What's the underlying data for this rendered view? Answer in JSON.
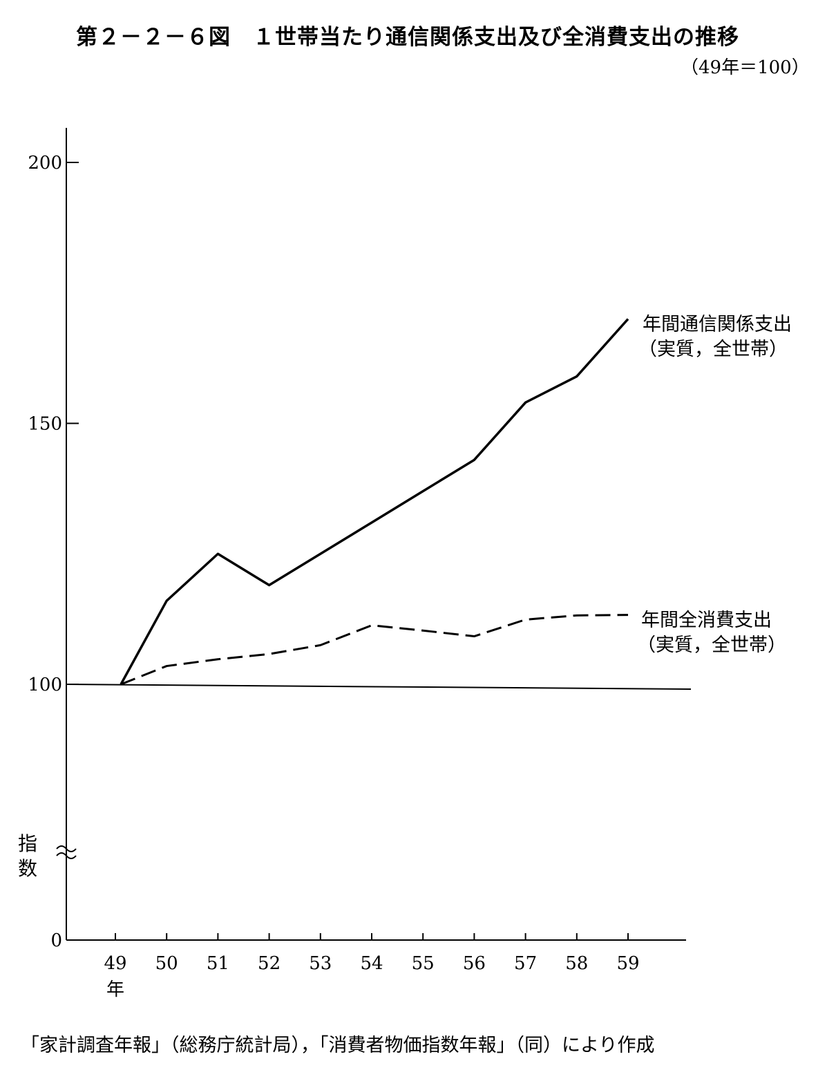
{
  "title": "第２－２－６図　１世帯当たり通信関係支出及び全消費支出の推移",
  "subtitle": "（49年＝100）",
  "source": "「家計調査年報」（総務庁統計局），「消費者物価指数年報」（同）により作成",
  "chart_data": {
    "type": "line",
    "ylabel": "指数",
    "xlabel": "",
    "x_unit_label": "年",
    "ylim": [
      0,
      200
    ],
    "y_ticks": [
      0,
      100,
      150,
      200
    ],
    "y_axis_break": true,
    "baseline": 100,
    "grid": false,
    "categories": [
      "49",
      "50",
      "51",
      "52",
      "53",
      "54",
      "55",
      "56",
      "57",
      "58",
      "59"
    ],
    "series": [
      {
        "name": "年間通信関係支出",
        "name_line2": "（実質，全世帯）",
        "style": "solid",
        "values": [
          100,
          116,
          125,
          119,
          125,
          131,
          137,
          143,
          154,
          159,
          170
        ]
      },
      {
        "name": "年間全消費支出",
        "name_line2": "（実質，全世帯）",
        "style": "dashed",
        "values": [
          100,
          103.5,
          104.8,
          105.8,
          107.5,
          111.3,
          110.3,
          109.2,
          112.4,
          113.2,
          113.3
        ]
      }
    ]
  }
}
